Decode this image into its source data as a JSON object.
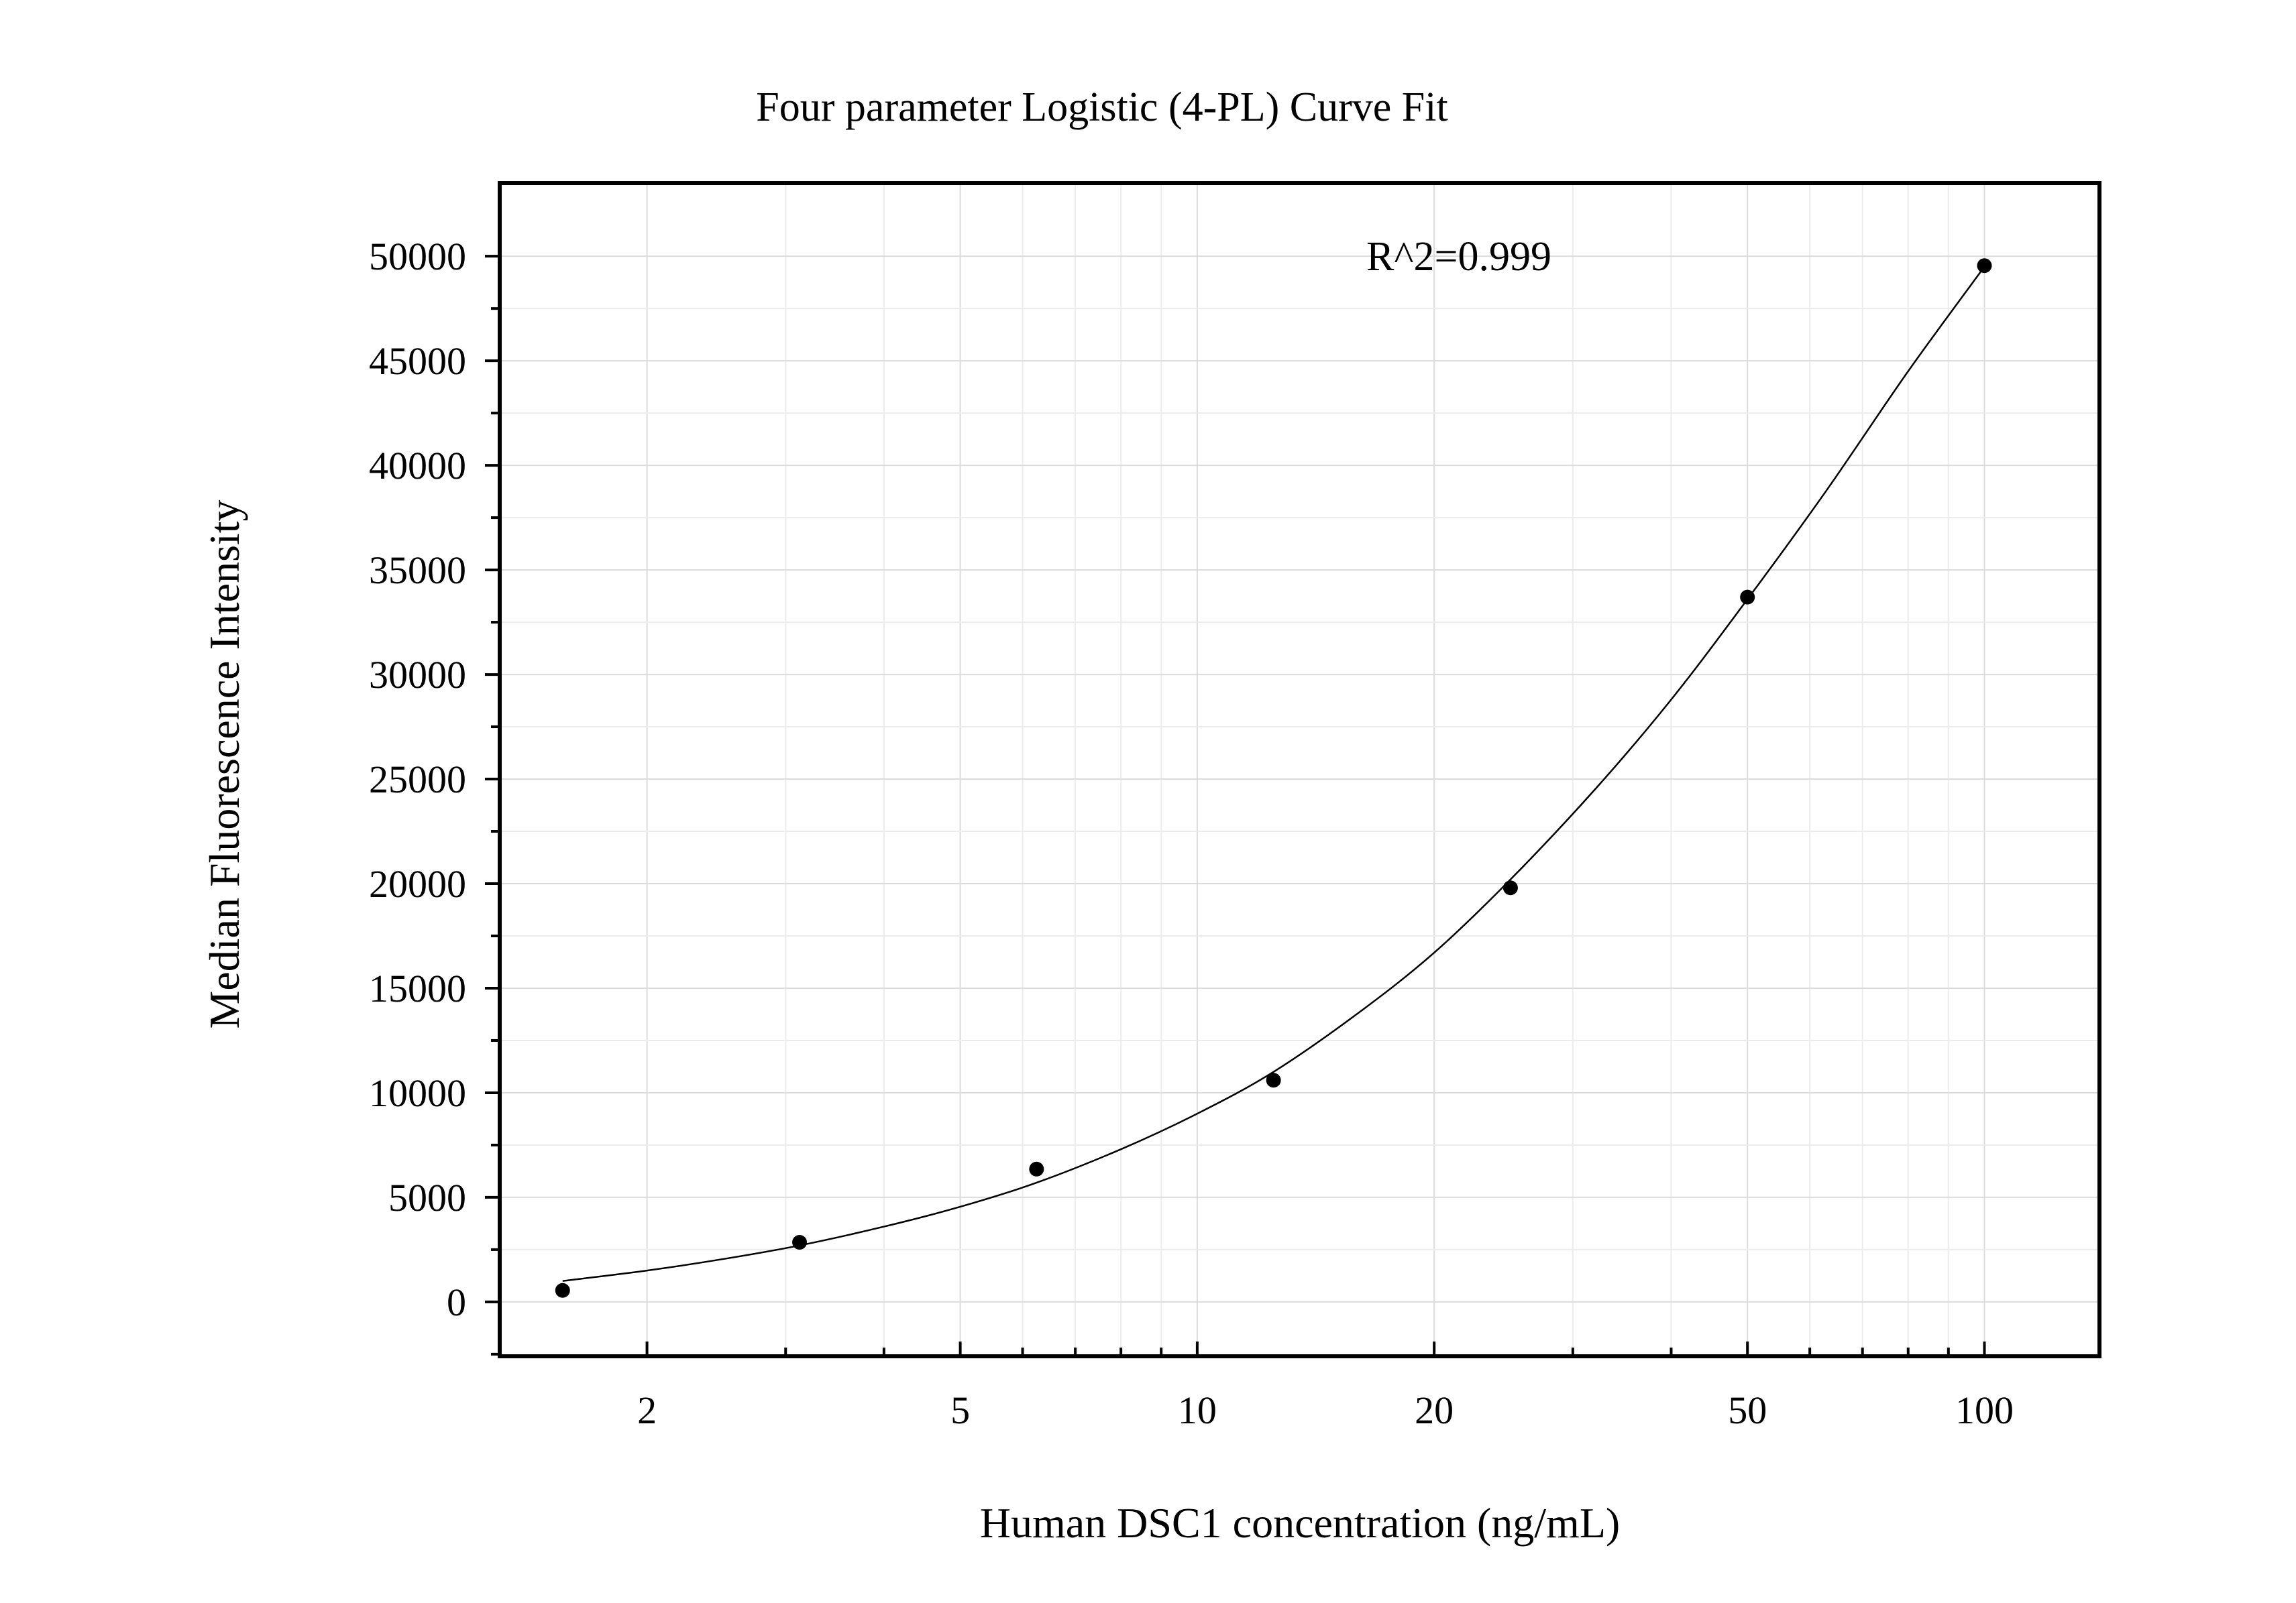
{
  "chart_data": {
    "type": "scatter",
    "title": "Four parameter Logistic (4-PL) Curve Fit",
    "xlabel": "Human DSC1 concentration (ng/mL)",
    "ylabel": "Median Fluorescence Intensity",
    "annotation": "R^2=0.999",
    "x_scale": "log",
    "xlim": [
      1.3,
      140
    ],
    "ylim": [
      -2600,
      53500
    ],
    "x_ticks": [
      2,
      5,
      10,
      20,
      50,
      100
    ],
    "x_tick_labels": [
      "2",
      "5",
      "10",
      "20",
      "50",
      "100"
    ],
    "y_ticks": [
      0,
      5000,
      10000,
      15000,
      20000,
      25000,
      30000,
      35000,
      40000,
      45000,
      50000
    ],
    "y_tick_labels": [
      "0",
      "5000",
      "10000",
      "15000",
      "20000",
      "25000",
      "30000",
      "35000",
      "40000",
      "45000",
      "50000"
    ],
    "grid": true,
    "series": [
      {
        "type": "scatter",
        "x": [
          1.5625,
          3.125,
          6.25,
          12.5,
          25,
          50,
          100
        ],
        "y": [
          550,
          2850,
          6350,
          10600,
          19800,
          33700,
          49550
        ]
      },
      {
        "type": "line",
        "x": [
          1.5625,
          2,
          2.5,
          3.125,
          4,
          5,
          6.25,
          8,
          10,
          12.5,
          16,
          20,
          25,
          32,
          40,
          50,
          63,
          80,
          100
        ],
        "y": [
          1000,
          1500,
          2050,
          2700,
          3600,
          4550,
          5700,
          7300,
          9000,
          11000,
          13800,
          16700,
          20200,
          24500,
          28800,
          33600,
          38800,
          44500,
          49500
        ]
      }
    ]
  }
}
